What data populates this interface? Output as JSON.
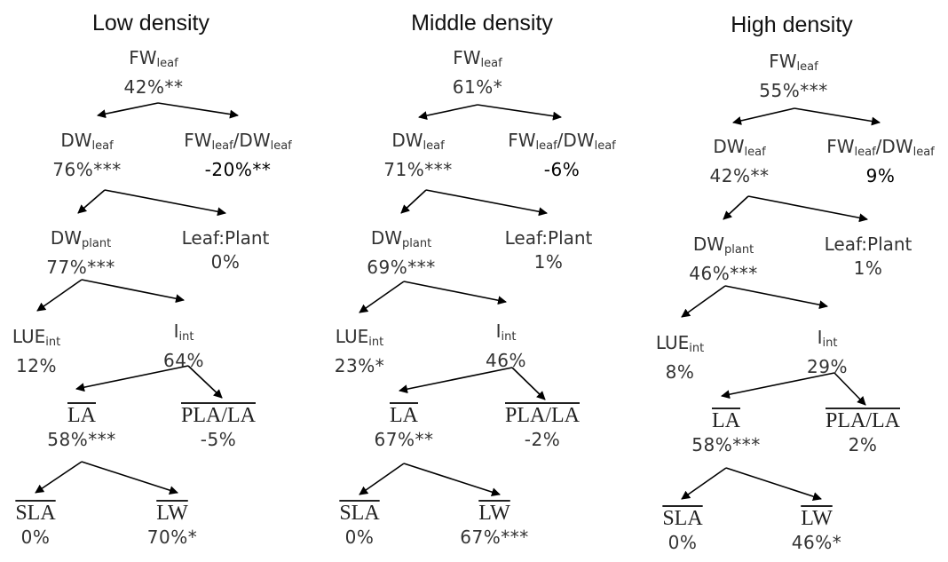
{
  "panels": [
    {
      "title": "Low density",
      "nodes": {
        "fw_leaf": {
          "base": "FW",
          "sub": "leaf",
          "value": "42%**"
        },
        "dw_leaf": {
          "base": "DW",
          "sub": "leaf",
          "value": "76%***"
        },
        "fw_dw_ratio": {
          "base1": "FW",
          "sub1": "leaf",
          "sep": "/",
          "base2": "DW",
          "sub2": "leaf",
          "value": "-20%**"
        },
        "dw_plant": {
          "base": "DW",
          "sub": "plant",
          "value": "77%***"
        },
        "leaf_plant": {
          "label": "Leaf:Plant",
          "value": "0%"
        },
        "lue_int": {
          "base": "LUE",
          "sub": "int",
          "value": "12%"
        },
        "i_int": {
          "base": "I",
          "sub": "int",
          "value": "64%"
        },
        "la": {
          "label": "LA",
          "value": "58%***"
        },
        "pla_la": {
          "label": "PLA/LA",
          "value": "-5%"
        },
        "sla": {
          "label": "SLA",
          "value": "0%"
        },
        "lw": {
          "label": "LW",
          "value": "70%*"
        }
      }
    },
    {
      "title": "Middle density",
      "nodes": {
        "fw_leaf": {
          "base": "FW",
          "sub": "leaf",
          "value": "61%*"
        },
        "dw_leaf": {
          "base": "DW",
          "sub": "leaf",
          "value": "71%***"
        },
        "fw_dw_ratio": {
          "base1": "FW",
          "sub1": "leaf",
          "sep": "/",
          "base2": "DW",
          "sub2": "leaf",
          "value": "-6%"
        },
        "dw_plant": {
          "base": "DW",
          "sub": "plant",
          "value": "69%***"
        },
        "leaf_plant": {
          "label": "Leaf:Plant",
          "value": "1%"
        },
        "lue_int": {
          "base": "LUE",
          "sub": "int",
          "value": "23%*"
        },
        "i_int": {
          "base": "I",
          "sub": "int",
          "value": "46%"
        },
        "la": {
          "label": "LA",
          "value": "67%**"
        },
        "pla_la": {
          "label": "PLA/LA",
          "value": "-2%"
        },
        "sla": {
          "label": "SLA",
          "value": "0%"
        },
        "lw": {
          "label": "LW",
          "value": "67%***"
        }
      }
    },
    {
      "title": "High density",
      "nodes": {
        "fw_leaf": {
          "base": "FW",
          "sub": "leaf",
          "value": "55%***"
        },
        "dw_leaf": {
          "base": "DW",
          "sub": "leaf",
          "value": "42%**"
        },
        "fw_dw_ratio": {
          "base1": "FW",
          "sub1": "leaf",
          "sep": "/",
          "base2": "DW",
          "sub2": "leaf",
          "value": "9%"
        },
        "dw_plant": {
          "base": "DW",
          "sub": "plant",
          "value": "46%***"
        },
        "leaf_plant": {
          "label": "Leaf:Plant",
          "value": "1%"
        },
        "lue_int": {
          "base": "LUE",
          "sub": "int",
          "value": "8%"
        },
        "i_int": {
          "base": "I",
          "sub": "int",
          "value": "29%"
        },
        "la": {
          "label": "LA",
          "value": "58%***"
        },
        "pla_la": {
          "label": "PLA/LA",
          "value": "2%"
        },
        "sla": {
          "label": "SLA",
          "value": "0%"
        },
        "lw": {
          "label": "LW",
          "value": "46%*"
        }
      }
    }
  ]
}
